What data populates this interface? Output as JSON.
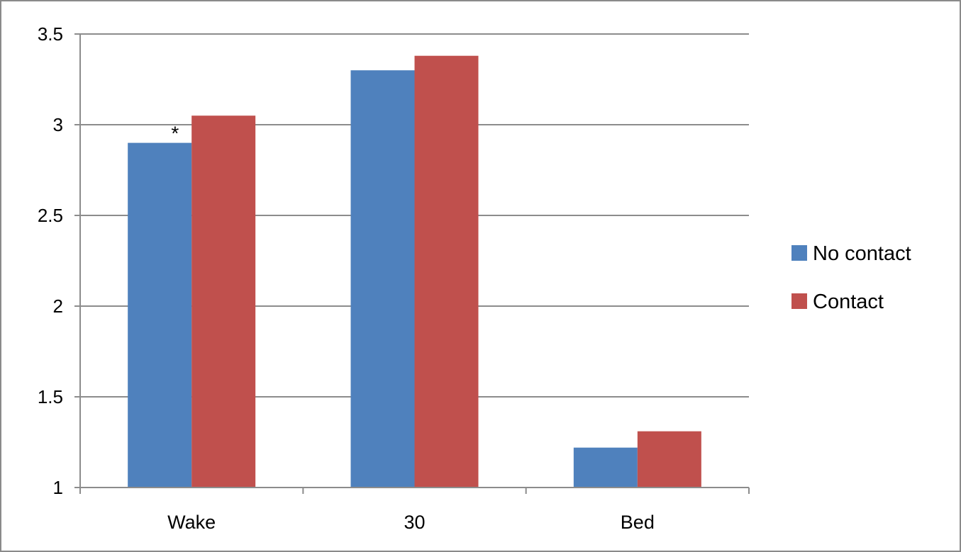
{
  "chart_data": {
    "type": "bar",
    "categories": [
      "Wake",
      "30",
      "Bed"
    ],
    "series": [
      {
        "name": "No contact",
        "color": "#4f81bd",
        "values": [
          2.9,
          3.3,
          1.22
        ]
      },
      {
        "name": "Contact",
        "color": "#c0504d",
        "values": [
          3.05,
          3.38,
          1.31
        ]
      }
    ],
    "ylim": [
      1,
      3.5
    ],
    "yticks": [
      1,
      1.5,
      2,
      2.5,
      3,
      3.5
    ],
    "ytick_labels": [
      "1",
      "1.5",
      "2",
      "2.5",
      "3",
      "3.5"
    ],
    "grid": true,
    "legend_position": "right",
    "annotations": [
      {
        "text": "*",
        "category": "Wake",
        "series": "No contact"
      }
    ],
    "title": "",
    "xlabel": "",
    "ylabel": ""
  }
}
